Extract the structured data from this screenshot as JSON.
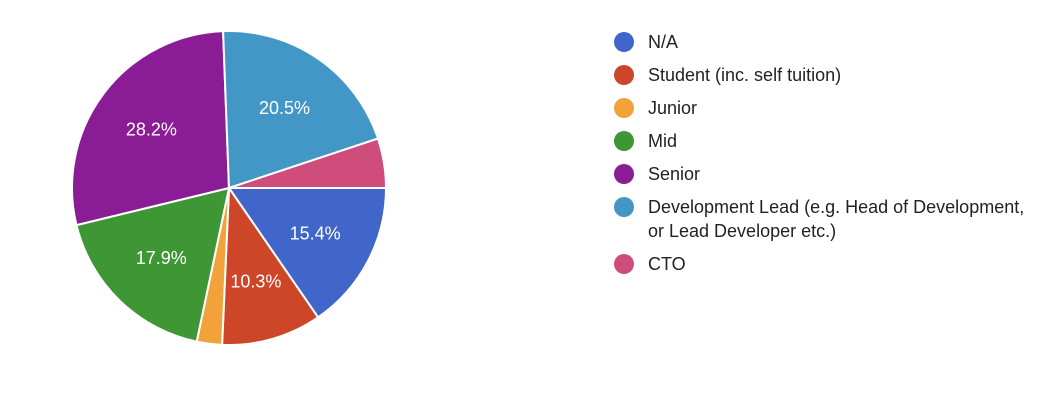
{
  "chart_data": {
    "type": "pie",
    "slices": [
      {
        "label": "N/A",
        "value": 15.4,
        "color": "#3f66c8",
        "data_label": "15.4%"
      },
      {
        "label": "Student (inc. self tuition)",
        "value": 10.3,
        "color": "#cc4627",
        "data_label": "10.3%"
      },
      {
        "label": "Junior",
        "value": 2.6,
        "color": "#f2a23a",
        "data_label": ""
      },
      {
        "label": "Mid",
        "value": 17.9,
        "color": "#3f9634",
        "data_label": "17.9%"
      },
      {
        "label": "Senior",
        "value": 28.2,
        "color": "#8a1c96",
        "data_label": "28.2%"
      },
      {
        "label": "Development Lead (e.g. Head of Development, or Lead Developer etc.)",
        "value": 20.5,
        "color": "#4397c7",
        "data_label": "20.5%"
      },
      {
        "label": "CTO",
        "value": 5.1,
        "color": "#cf4d7a",
        "data_label": ""
      }
    ],
    "start_angle": "3 o'clock, clockwise",
    "legend_position": "right"
  }
}
